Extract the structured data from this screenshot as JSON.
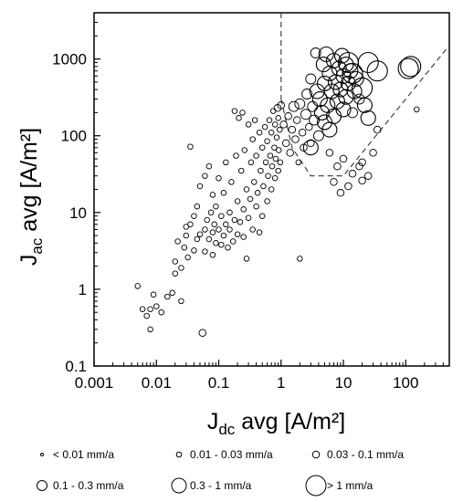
{
  "chart_data": {
    "type": "scatter",
    "x_scale": "log",
    "y_scale": "log",
    "xlim": [
      0.001,
      500
    ],
    "ylim": [
      0.1,
      4000
    ],
    "xticks": [
      0.001,
      0.01,
      0.1,
      1,
      10,
      100
    ],
    "xtick_labels": [
      "0.001",
      "0.01",
      "0.1",
      "1",
      "10",
      "100"
    ],
    "yticks": [
      0.1,
      1,
      10,
      100,
      1000
    ],
    "ytick_labels": [
      "0.1",
      "1",
      "10",
      "100",
      "1000"
    ],
    "xlabel": {
      "main": "J",
      "sub": "dc",
      "rest": " avg [A/m²]"
    },
    "ylabel": {
      "main": "J",
      "sub": "ac",
      "rest": " avg [A/m²]"
    },
    "grid": false,
    "legend_position": "bottom",
    "legend": [
      {
        "label": "< 0.01 mm/a",
        "size_class": 1
      },
      {
        "label": "0.01 - 0.03 mm/a",
        "size_class": 2
      },
      {
        "label": "0.03 - 0.1 mm/a",
        "size_class": 3
      },
      {
        "label": "0.1 - 0.3 mm/a",
        "size_class": 4
      },
      {
        "label": "0.3 - 1 mm/a",
        "size_class": 5
      },
      {
        "label": "> 1 mm/a",
        "size_class": 6
      }
    ],
    "reference_lines": [
      {
        "style": "dashed",
        "points": [
          [
            1,
            4000
          ],
          [
            1,
            300
          ]
        ]
      },
      {
        "style": "dashed",
        "points": [
          [
            1,
            300
          ],
          [
            1.5,
            70
          ],
          [
            3,
            30
          ],
          [
            10,
            30
          ],
          [
            500,
            1500
          ]
        ]
      }
    ],
    "points": [
      [
        0.005,
        1.1,
        2
      ],
      [
        0.006,
        0.55,
        2
      ],
      [
        0.007,
        0.45,
        2
      ],
      [
        0.008,
        0.3,
        2
      ],
      [
        0.008,
        0.55,
        2
      ],
      [
        0.009,
        0.85,
        2
      ],
      [
        0.01,
        0.6,
        2
      ],
      [
        0.012,
        0.5,
        2
      ],
      [
        0.015,
        0.8,
        2
      ],
      [
        0.018,
        0.9,
        2
      ],
      [
        0.02,
        1.6,
        2
      ],
      [
        0.02,
        2.3,
        2
      ],
      [
        0.022,
        4.2,
        2
      ],
      [
        0.025,
        0.7,
        2
      ],
      [
        0.025,
        1.9,
        2
      ],
      [
        0.028,
        3.5,
        2
      ],
      [
        0.03,
        5,
        2
      ],
      [
        0.03,
        6.5,
        2
      ],
      [
        0.032,
        2.6,
        2
      ],
      [
        0.035,
        7,
        2
      ],
      [
        0.035,
        72,
        2
      ],
      [
        0.04,
        3.2,
        2
      ],
      [
        0.04,
        9,
        2
      ],
      [
        0.045,
        4.5,
        2
      ],
      [
        0.045,
        12,
        2
      ],
      [
        0.05,
        5.2,
        2
      ],
      [
        0.05,
        22,
        2
      ],
      [
        0.055,
        0.27,
        3
      ],
      [
        0.06,
        3.1,
        2
      ],
      [
        0.06,
        6,
        2
      ],
      [
        0.06,
        30,
        2
      ],
      [
        0.065,
        8,
        2
      ],
      [
        0.07,
        4.5,
        2
      ],
      [
        0.07,
        40,
        2
      ],
      [
        0.075,
        10,
        2
      ],
      [
        0.08,
        2.8,
        2
      ],
      [
        0.08,
        5.5,
        2
      ],
      [
        0.08,
        17,
        2
      ],
      [
        0.085,
        7,
        2
      ],
      [
        0.09,
        4,
        2
      ],
      [
        0.09,
        12,
        2
      ],
      [
        0.1,
        6,
        2
      ],
      [
        0.1,
        28,
        2
      ],
      [
        0.11,
        3.8,
        2
      ],
      [
        0.11,
        9,
        2
      ],
      [
        0.12,
        5,
        2
      ],
      [
        0.12,
        18,
        2
      ],
      [
        0.13,
        7,
        2
      ],
      [
        0.13,
        45,
        2
      ],
      [
        0.14,
        3.5,
        2
      ],
      [
        0.15,
        10,
        2
      ],
      [
        0.15,
        6,
        2
      ],
      [
        0.16,
        25,
        2
      ],
      [
        0.17,
        4.2,
        2
      ],
      [
        0.18,
        8,
        2
      ],
      [
        0.18,
        210,
        2
      ],
      [
        0.19,
        55,
        2
      ],
      [
        0.2,
        5.2,
        2
      ],
      [
        0.2,
        14,
        2
      ],
      [
        0.21,
        170,
        2
      ],
      [
        0.22,
        7.5,
        2
      ],
      [
        0.23,
        35,
        2
      ],
      [
        0.24,
        200,
        2
      ],
      [
        0.25,
        4.8,
        2
      ],
      [
        0.25,
        11,
        2
      ],
      [
        0.26,
        65,
        2
      ],
      [
        0.28,
        20,
        2
      ],
      [
        0.28,
        2.5,
        2
      ],
      [
        0.3,
        8.5,
        2
      ],
      [
        0.3,
        140,
        2
      ],
      [
        0.32,
        15,
        2
      ],
      [
        0.33,
        45,
        2
      ],
      [
        0.35,
        6,
        2
      ],
      [
        0.35,
        90,
        2
      ],
      [
        0.37,
        25,
        2
      ],
      [
        0.38,
        160,
        2
      ],
      [
        0.4,
        12,
        2
      ],
      [
        0.4,
        55,
        2
      ],
      [
        0.42,
        18,
        2
      ],
      [
        0.45,
        5.5,
        2
      ],
      [
        0.45,
        110,
        2
      ],
      [
        0.47,
        35,
        2
      ],
      [
        0.5,
        9,
        2
      ],
      [
        0.5,
        70,
        2
      ],
      [
        0.52,
        22,
        2
      ],
      [
        0.55,
        130,
        2
      ],
      [
        0.57,
        45,
        2
      ],
      [
        0.6,
        14,
        2
      ],
      [
        0.6,
        85,
        2
      ],
      [
        0.62,
        30,
        2
      ],
      [
        0.65,
        160,
        2
      ],
      [
        0.67,
        55,
        2
      ],
      [
        0.7,
        20,
        2
      ],
      [
        0.7,
        110,
        2
      ],
      [
        0.72,
        40,
        2
      ],
      [
        0.75,
        210,
        2
      ],
      [
        0.78,
        70,
        2
      ],
      [
        0.8,
        28,
        2
      ],
      [
        0.8,
        140,
        2
      ],
      [
        0.82,
        50,
        2
      ],
      [
        0.85,
        95,
        2
      ],
      [
        0.88,
        230,
        3
      ],
      [
        0.9,
        35,
        2
      ],
      [
        0.9,
        170,
        2
      ],
      [
        0.92,
        65,
        2
      ],
      [
        0.95,
        120,
        2
      ],
      [
        0.97,
        45,
        2
      ],
      [
        1,
        250,
        3
      ],
      [
        1.1,
        140,
        3
      ],
      [
        1.2,
        80,
        3
      ],
      [
        1.3,
        180,
        3
      ],
      [
        1.4,
        60,
        3
      ],
      [
        1.5,
        120,
        3
      ],
      [
        1.6,
        240,
        4
      ],
      [
        1.7,
        90,
        3
      ],
      [
        1.8,
        160,
        3
      ],
      [
        1.9,
        45,
        2
      ],
      [
        2,
        2.5,
        2
      ],
      [
        2,
        260,
        4
      ],
      [
        2.2,
        110,
        3
      ],
      [
        2.3,
        70,
        3
      ],
      [
        2.5,
        190,
        4
      ],
      [
        2.6,
        350,
        4
      ],
      [
        2.8,
        130,
        3
      ],
      [
        3,
        80,
        3
      ],
      [
        3,
        550,
        4
      ],
      [
        3.2,
        240,
        4
      ],
      [
        3.4,
        160,
        4
      ],
      [
        3.6,
        1200,
        4
      ],
      [
        3.8,
        380,
        5
      ],
      [
        4,
        100,
        4
      ],
      [
        4.2,
        300,
        5
      ],
      [
        4.5,
        200,
        5
      ],
      [
        4.8,
        850,
        5
      ],
      [
        5,
        150,
        5
      ],
      [
        5,
        480,
        5
      ],
      [
        5.3,
        1150,
        5
      ],
      [
        5.6,
        250,
        5
      ],
      [
        6,
        650,
        5
      ],
      [
        6,
        120,
        5
      ],
      [
        6.5,
        380,
        5
      ],
      [
        7,
        180,
        5
      ],
      [
        7,
        950,
        5
      ],
      [
        7.5,
        500,
        5
      ],
      [
        8,
        280,
        5
      ],
      [
        8.5,
        750,
        5
      ],
      [
        9,
        400,
        5
      ],
      [
        9.5,
        1100,
        5
      ],
      [
        10,
        220,
        5
      ],
      [
        10,
        600,
        5
      ],
      [
        11,
        320,
        5
      ],
      [
        11,
        850,
        5
      ],
      [
        12,
        480,
        5
      ],
      [
        13,
        700,
        5
      ],
      [
        14,
        200,
        4
      ],
      [
        15,
        380,
        5
      ],
      [
        16,
        550,
        5
      ],
      [
        18,
        300,
        4
      ],
      [
        20,
        45,
        3
      ],
      [
        22,
        250,
        5
      ],
      [
        25,
        170,
        5
      ],
      [
        30,
        60,
        3
      ],
      [
        35,
        120,
        3
      ],
      [
        6,
        60,
        3
      ],
      [
        7,
        25,
        3
      ],
      [
        8,
        40,
        3
      ],
      [
        9,
        18,
        3
      ],
      [
        10,
        50,
        3
      ],
      [
        12,
        22,
        3
      ],
      [
        14,
        32,
        3
      ],
      [
        18,
        40,
        3
      ],
      [
        20,
        26,
        3
      ],
      [
        25,
        30,
        3
      ],
      [
        3,
        70,
        5
      ],
      [
        12,
        900,
        6
      ],
      [
        14,
        650,
        6
      ],
      [
        20,
        420,
        6
      ],
      [
        25,
        900,
        6
      ],
      [
        35,
        700,
        6
      ],
      [
        110,
        750,
        6
      ],
      [
        120,
        800,
        6
      ],
      [
        150,
        220,
        2
      ]
    ]
  }
}
